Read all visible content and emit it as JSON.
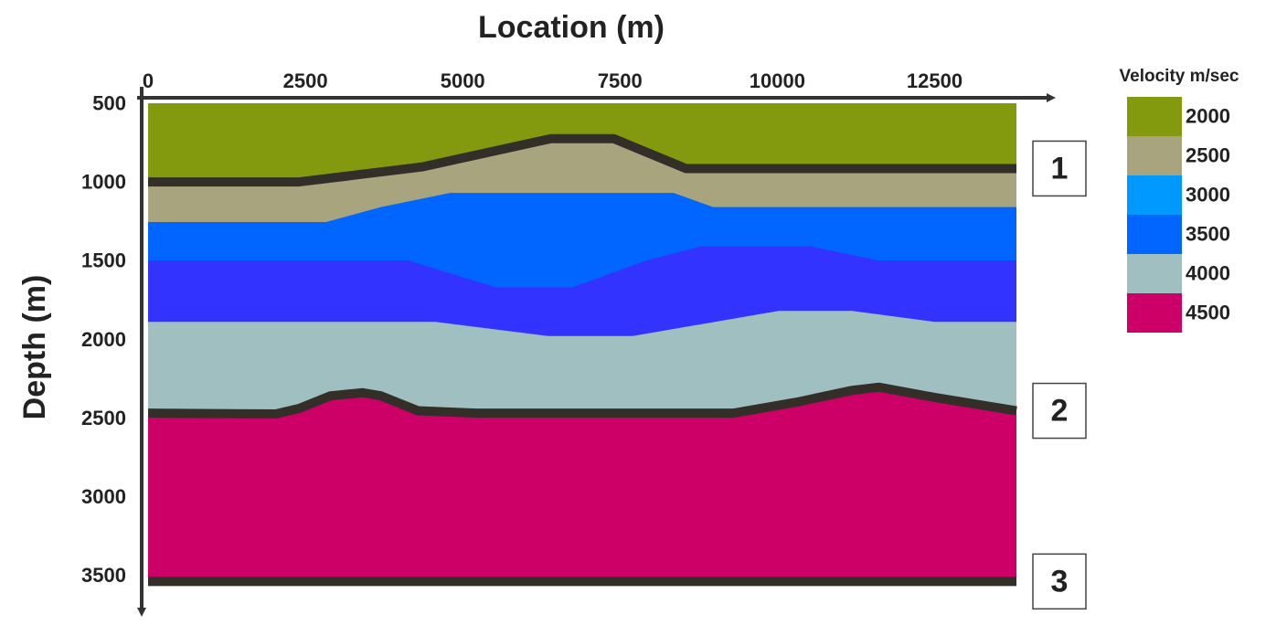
{
  "chart_data": {
    "type": "layers",
    "title": "Location (m)",
    "y_label": "Depth (m)",
    "xlim": [
      0,
      13800
    ],
    "xticks": [
      0,
      2500,
      5000,
      7500,
      10000,
      12500
    ],
    "ylim": [
      490,
      3650
    ],
    "y_reversed": true,
    "yticks": [
      500,
      1000,
      1500,
      2000,
      2500,
      3000,
      3500
    ],
    "series": [
      {
        "color": "#849a0e",
        "x": [
          0,
          13800
        ],
        "values": [
          490,
          490
        ]
      },
      {
        "color": "#a8a47e",
        "x": [
          0,
          2400,
          4350,
          6400,
          7400,
          8550,
          13800
        ],
        "values": [
          990,
          990,
          895,
          715,
          715,
          905,
          905
        ],
        "horizon_label": "1"
      },
      {
        "color": "#0066ff",
        "x": [
          0,
          2830,
          3700,
          4800,
          8350,
          8980,
          13800
        ],
        "values": [
          1245,
          1245,
          1150,
          1060,
          1060,
          1150,
          1150
        ]
      },
      {
        "color": "#3333ff",
        "x": [
          0,
          4140,
          5520,
          6750,
          7920,
          8790,
          10530,
          11620,
          13800
        ],
        "values": [
          1490,
          1490,
          1660,
          1660,
          1490,
          1400,
          1400,
          1490,
          1490
        ]
      },
      {
        "color": "#a0bfc0",
        "x": [
          0,
          4570,
          6360,
          7700,
          10020,
          11190,
          12500,
          13800
        ],
        "values": [
          1880,
          1880,
          1970,
          1970,
          1810,
          1810,
          1880,
          1880
        ]
      },
      {
        "color": "#cc0066",
        "x": [
          0,
          2030,
          2400,
          2900,
          3410,
          3700,
          4290,
          5230,
          9300,
          10310,
          11190,
          11620,
          12500,
          13800
        ],
        "values": [
          2460,
          2465,
          2430,
          2350,
          2330,
          2350,
          2445,
          2460,
          2460,
          2390,
          2315,
          2295,
          2360,
          2445
        ],
        "horizon_label": "2"
      }
    ],
    "base": {
      "value": 3530,
      "horizon_label": "3"
    },
    "horizon_color": "#332f28",
    "legend": {
      "title": "Velocity m/sec",
      "values": [
        2000,
        2500,
        3000,
        3500,
        4000,
        4500
      ],
      "colors": [
        "#849a0e",
        "#a8a47e",
        "#0099ff",
        "#0066ff",
        "#a0bfc0",
        "#cc0066"
      ]
    }
  }
}
